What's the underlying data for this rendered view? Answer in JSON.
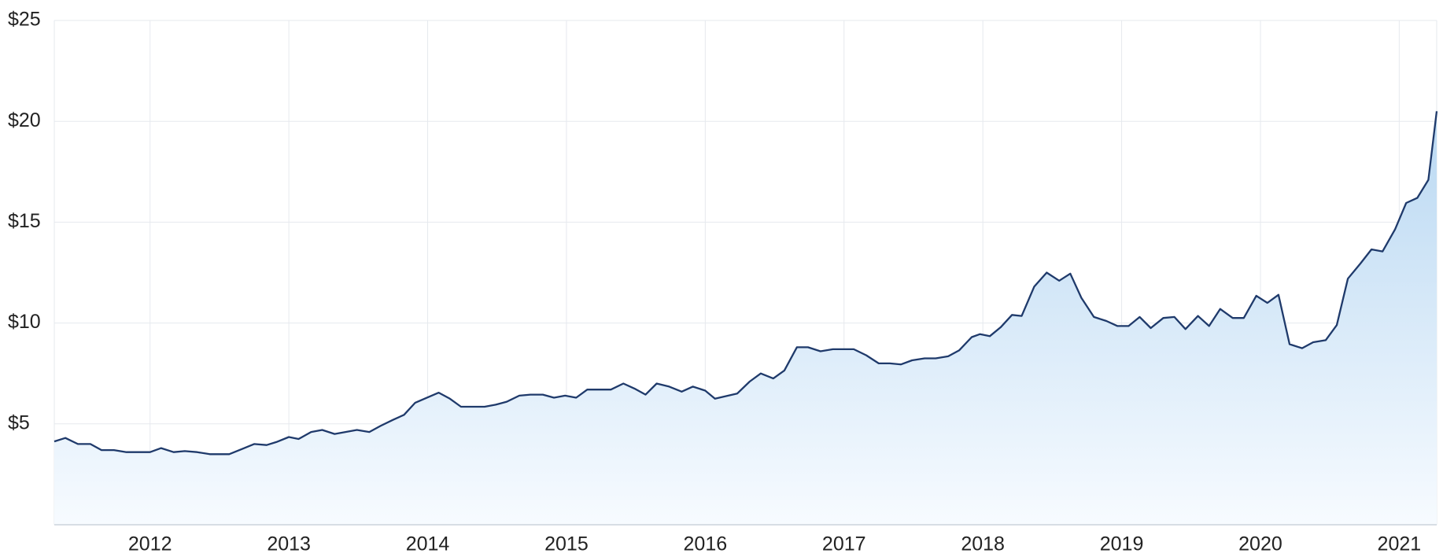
{
  "chart_data": {
    "type": "area",
    "x": [
      2011.31,
      2011.39,
      2011.48,
      2011.57,
      2011.65,
      2011.74,
      2011.83,
      2011.91,
      2012.0,
      2012.08,
      2012.17,
      2012.25,
      2012.34,
      2012.43,
      2012.57,
      2012.66,
      2012.75,
      2012.84,
      2012.91,
      2013.0,
      2013.07,
      2013.16,
      2013.24,
      2013.33,
      2013.49,
      2013.58,
      2013.66,
      2013.75,
      2013.83,
      2013.91,
      2014.08,
      2014.16,
      2014.24,
      2014.41,
      2014.49,
      2014.57,
      2014.66,
      2014.74,
      2014.83,
      2014.91,
      2014.99,
      2015.07,
      2015.15,
      2015.32,
      2015.41,
      2015.49,
      2015.57,
      2015.65,
      2015.74,
      2015.83,
      2015.91,
      2016.0,
      2016.07,
      2016.23,
      2016.32,
      2016.4,
      2016.49,
      2016.57,
      2016.66,
      2016.74,
      2016.83,
      2016.92,
      2017.07,
      2017.16,
      2017.25,
      2017.33,
      2017.41,
      2017.49,
      2017.58,
      2017.66,
      2017.75,
      2017.83,
      2017.92,
      2017.98,
      2018.05,
      2018.13,
      2018.21,
      2018.28,
      2018.37,
      2018.46,
      2018.55,
      2018.63,
      2018.71,
      2018.8,
      2018.89,
      2018.97,
      2019.05,
      2019.13,
      2019.21,
      2019.3,
      2019.38,
      2019.46,
      2019.55,
      2019.63,
      2019.71,
      2019.8,
      2019.88,
      2019.97,
      2020.05,
      2020.13,
      2020.21,
      2020.3,
      2020.38,
      2020.47,
      2020.55,
      2020.63,
      2020.72,
      2020.8,
      2020.88,
      2020.97,
      2021.05,
      2021.13,
      2021.21,
      2021.27
    ],
    "values": [
      4.13,
      4.3,
      4.0,
      4.0,
      3.7,
      3.7,
      3.6,
      3.6,
      3.6,
      3.8,
      3.6,
      3.65,
      3.6,
      3.5,
      3.5,
      3.75,
      4.0,
      3.95,
      4.1,
      4.35,
      4.25,
      4.6,
      4.7,
      4.5,
      4.7,
      4.6,
      4.9,
      5.2,
      5.45,
      6.05,
      6.55,
      6.25,
      5.85,
      5.85,
      5.95,
      6.1,
      6.4,
      6.45,
      6.45,
      6.3,
      6.4,
      6.3,
      6.7,
      6.7,
      7.0,
      6.75,
      6.45,
      7.0,
      6.85,
      6.6,
      6.85,
      6.65,
      6.25,
      6.5,
      7.1,
      7.5,
      7.25,
      7.65,
      8.8,
      8.8,
      8.6,
      8.7,
      8.7,
      8.4,
      8.0,
      8.0,
      7.95,
      8.15,
      8.25,
      8.25,
      8.35,
      8.65,
      9.3,
      9.45,
      9.35,
      9.8,
      10.4,
      10.35,
      11.8,
      12.5,
      12.1,
      12.45,
      11.25,
      10.3,
      10.1,
      9.85,
      9.85,
      10.3,
      9.75,
      10.25,
      10.3,
      9.7,
      10.35,
      9.85,
      10.7,
      10.25,
      10.25,
      11.35,
      11.0,
      11.4,
      8.95,
      8.75,
      9.05,
      9.15,
      9.9,
      12.2,
      12.95,
      13.65,
      13.55,
      14.65,
      15.95,
      16.2,
      17.1,
      20.5
    ],
    "color": "#1f3a6b",
    "xlim": [
      2011.31,
      2021.27
    ],
    "xticks": [
      2012,
      2013,
      2014,
      2015,
      2016,
      2017,
      2018,
      2019,
      2020,
      2021
    ],
    "ylim": [
      0,
      25
    ],
    "yticks": [
      {
        "value": 5,
        "label": "$5"
      },
      {
        "value": 10,
        "label": "$10"
      },
      {
        "value": 15,
        "label": "$15"
      },
      {
        "value": 20,
        "label": "$20"
      },
      {
        "value": 25,
        "label": "$25"
      }
    ],
    "grid": true
  }
}
